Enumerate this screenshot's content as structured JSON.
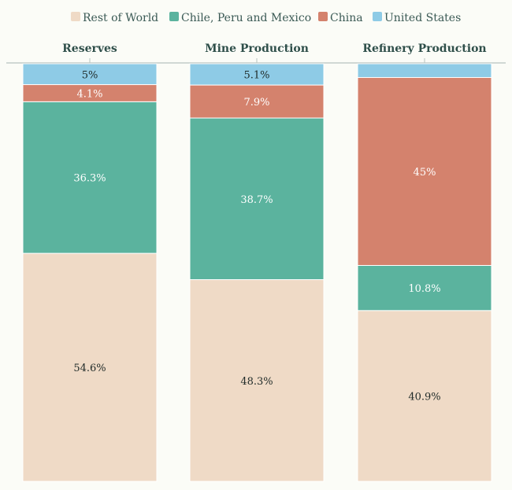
{
  "chart_data": {
    "type": "bar",
    "stacked": true,
    "percent": true,
    "legend_position": "top",
    "categories": [
      "Reserves",
      "Mine Production",
      "Refinery Production"
    ],
    "series": [
      {
        "name": "Rest of World",
        "color": "#efdac6",
        "values": [
          54.6,
          48.3,
          40.9
        ],
        "labels": [
          "54.6%",
          "48.3%",
          "40.9%"
        ],
        "label_style": "dark"
      },
      {
        "name": "Chile, Peru and Mexico",
        "color": "#5bb39e",
        "values": [
          36.3,
          38.7,
          10.8
        ],
        "labels": [
          "36.3%",
          "38.7%",
          "10.8%"
        ],
        "label_style": "light"
      },
      {
        "name": "China",
        "color": "#d4826d",
        "values": [
          4.1,
          7.9,
          45.0
        ],
        "labels": [
          "4.1%",
          "7.9%",
          "45%"
        ],
        "label_style": "light"
      },
      {
        "name": "United States",
        "color": "#8ecbe6",
        "values": [
          5.0,
          5.1,
          3.3
        ],
        "labels": [
          "5%",
          "5.1%",
          ""
        ],
        "label_style": "dark"
      }
    ],
    "ylim": [
      0,
      100
    ],
    "title": "",
    "xlabel": "",
    "ylabel": ""
  }
}
